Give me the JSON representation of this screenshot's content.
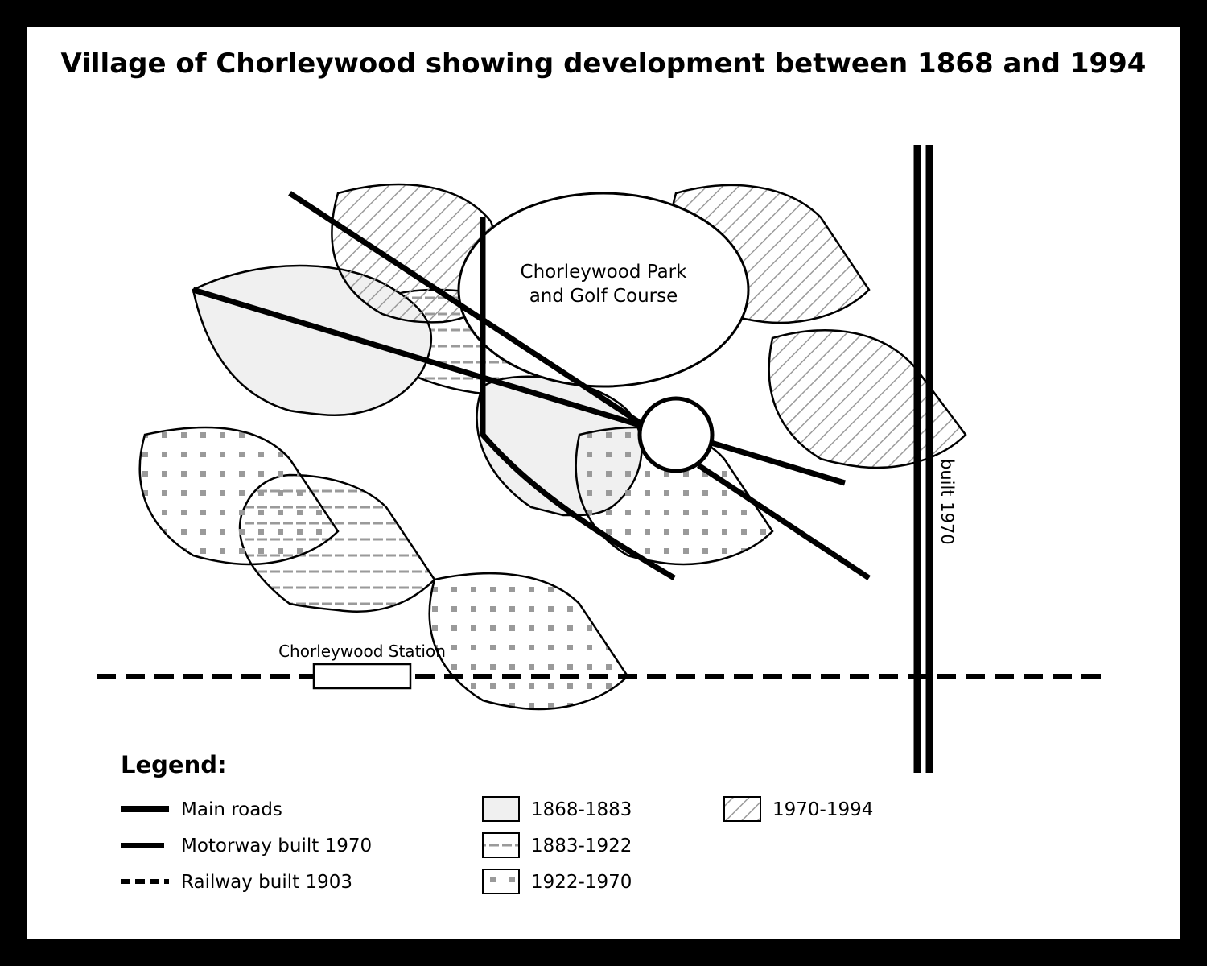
{
  "title": "Village of Chorleywood showing development between 1868 and 1994",
  "labels": {
    "park_line1": "Chorleywood Park",
    "park_line2": "and Golf Course",
    "station": "Chorleywood Station",
    "motorway_note": "built 1970"
  },
  "legend": {
    "heading": "Legend:",
    "main_roads": "Main roads",
    "motorway": "Motorway built 1970",
    "railway": "Railway built 1903",
    "period_1868": "1868-1883",
    "period_1883": "1883-1922",
    "period_1922": "1922-1970",
    "period_1970": "1970-1994"
  },
  "colors": {
    "frame": "#000000",
    "background": "#ffffff",
    "period_1868_fill": "#f0f0f0",
    "pattern_grey": "#9a9a9a"
  }
}
